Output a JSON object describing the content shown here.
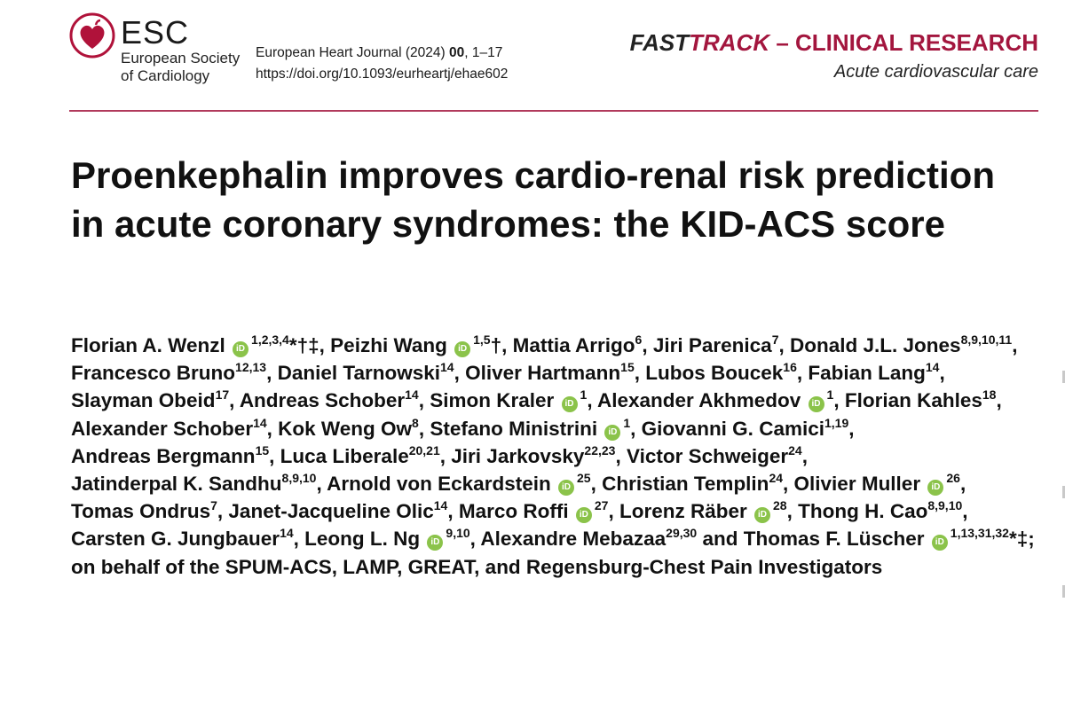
{
  "logo": {
    "abbr": "ESC",
    "line1": "European Society",
    "line2": "of Cardiology"
  },
  "journal": {
    "name": "European Heart Journal (2024)",
    "volume": "00",
    "pages": ", 1–17",
    "doi": "https://doi.org/10.1093/eurheartj/ehae602"
  },
  "category": {
    "fast": "FAST",
    "track": "TRACK",
    "dash": " – CLINICAL RESEARCH",
    "sub": "Acute cardiovascular care"
  },
  "title": "Proenkephalin improves cardio-renal risk prediction in acute coronary syndromes: the KID-ACS score",
  "orcid_label": "iD",
  "authors": [
    {
      "name": "Florian A. Wenzl",
      "sup": "1,2,3,4",
      "sym": "*†‡",
      "orcid": true
    },
    {
      "name": "Peizhi Wang",
      "sup": "1,5",
      "sym": "†",
      "orcid": true
    },
    {
      "name": "Mattia Arrigo",
      "sup": "6"
    },
    {
      "name": "Jiri Parenica",
      "sup": "7"
    },
    {
      "name": "Donald J.L. Jones",
      "sup": "8,9,10,11"
    },
    {
      "name": "Francesco Bruno",
      "sup": "12,13"
    },
    {
      "name": "Daniel Tarnowski",
      "sup": "14"
    },
    {
      "name": "Oliver Hartmann",
      "sup": "15"
    },
    {
      "name": "Lubos Boucek",
      "sup": "16"
    },
    {
      "name": "Fabian Lang",
      "sup": "14"
    },
    {
      "name": "Slayman Obeid",
      "sup": "17"
    },
    {
      "name": "Andreas Schober",
      "sup": "14"
    },
    {
      "name": "Simon Kraler",
      "sup": "1",
      "orcid": true
    },
    {
      "name": "Alexander Akhmedov",
      "sup": "1",
      "orcid": true
    },
    {
      "name": "Florian Kahles",
      "sup": "18"
    },
    {
      "name": "Alexander Schober",
      "sup": "14"
    },
    {
      "name": "Kok Weng Ow",
      "sup": "8"
    },
    {
      "name": "Stefano Ministrini",
      "sup": "1",
      "orcid": true
    },
    {
      "name": "Giovanni G. Camici",
      "sup": "1,19"
    },
    {
      "name": "Andreas Bergmann",
      "sup": "15"
    },
    {
      "name": "Luca Liberale",
      "sup": "20,21"
    },
    {
      "name": "Jiri Jarkovsky",
      "sup": "22,23"
    },
    {
      "name": "Victor Schweiger",
      "sup": "24"
    },
    {
      "name": "Jatinderpal K. Sandhu",
      "sup": "8,9,10"
    },
    {
      "name": "Arnold von Eckardstein",
      "sup": "25",
      "orcid": true
    },
    {
      "name": "Christian Templin",
      "sup": "24"
    },
    {
      "name": "Olivier Muller",
      "sup": "26",
      "orcid": true
    },
    {
      "name": "Tomas Ondrus",
      "sup": "7"
    },
    {
      "name": "Janet-Jacqueline Olic",
      "sup": "14"
    },
    {
      "name": "Marco Roffi",
      "sup": "27",
      "orcid": true
    },
    {
      "name": "Lorenz Räber",
      "sup": "28",
      "orcid": true
    },
    {
      "name": "Thong H. Cao",
      "sup": "8,9,10"
    },
    {
      "name": "Carsten G. Jungbauer",
      "sup": "14"
    },
    {
      "name": "Leong L. Ng",
      "sup": "9,10",
      "orcid": true
    },
    {
      "name": "Alexandre Mebazaa",
      "sup": "29,30",
      "sep": " and "
    },
    {
      "name": "Thomas F. Lüscher",
      "sup": "1,13,31,32",
      "sym": "*‡",
      "orcid": true
    }
  ],
  "authors_end": ";",
  "behalf": "on behalf of the SPUM-ACS, LAMP, GREAT, and Regensburg-Chest Pain Investigators"
}
